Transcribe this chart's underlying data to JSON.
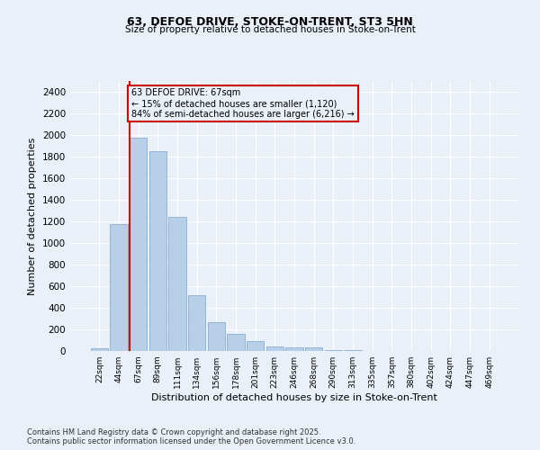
{
  "title1": "63, DEFOE DRIVE, STOKE-ON-TRENT, ST3 5HN",
  "title2": "Size of property relative to detached houses in Stoke-on-Trent",
  "xlabel": "Distribution of detached houses by size in Stoke-on-Trent",
  "ylabel": "Number of detached properties",
  "categories": [
    "22sqm",
    "44sqm",
    "67sqm",
    "89sqm",
    "111sqm",
    "134sqm",
    "156sqm",
    "178sqm",
    "201sqm",
    "223sqm",
    "246sqm",
    "268sqm",
    "290sqm",
    "313sqm",
    "335sqm",
    "357sqm",
    "380sqm",
    "402sqm",
    "424sqm",
    "447sqm",
    "469sqm"
  ],
  "values": [
    25,
    1175,
    1975,
    1850,
    1245,
    515,
    270,
    160,
    95,
    45,
    35,
    30,
    10,
    5,
    2,
    1,
    1,
    0,
    0,
    0,
    0
  ],
  "bar_color": "#b8cfe8",
  "bar_edge_color": "#7aa4cc",
  "vline_index": 2,
  "annotation_title": "63 DEFOE DRIVE: 67sqm",
  "annotation_line1": "← 15% of detached houses are smaller (1,120)",
  "annotation_line2": "84% of semi-detached houses are larger (6,216) →",
  "box_color": "#cc0000",
  "ylim": [
    0,
    2500
  ],
  "yticks": [
    0,
    200,
    400,
    600,
    800,
    1000,
    1200,
    1400,
    1600,
    1800,
    2000,
    2200,
    2400
  ],
  "footnote1": "Contains HM Land Registry data © Crown copyright and database right 2025.",
  "footnote2": "Contains public sector information licensed under the Open Government Licence v3.0.",
  "bg_color": "#eaf0f8",
  "grid_color": "#ffffff"
}
